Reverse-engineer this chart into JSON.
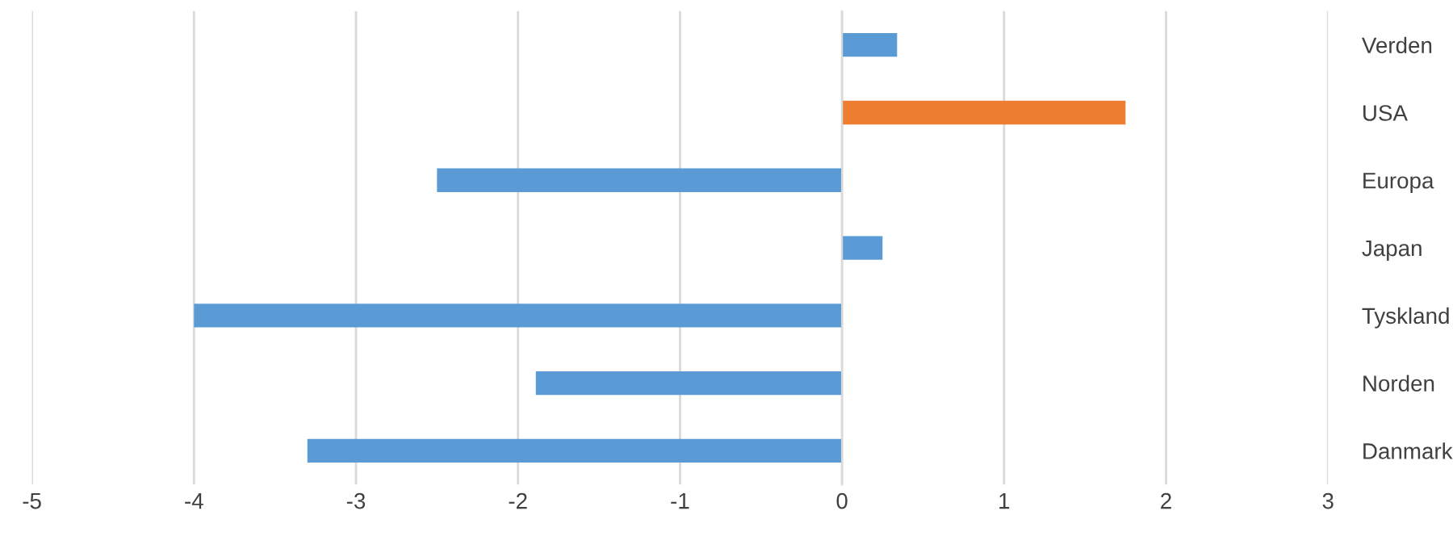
{
  "chart_data": {
    "type": "bar",
    "orientation": "horizontal",
    "categories": [
      "Verden",
      "USA",
      "Europa",
      "Japan",
      "Tyskland",
      "Norden",
      "Danmark"
    ],
    "values": [
      0.34,
      1.75,
      -2.5,
      0.25,
      -4.0,
      -1.89,
      -3.3
    ],
    "colors": [
      "#5b9bd5",
      "#ed7d31",
      "#5b9bd5",
      "#5b9bd5",
      "#5b9bd5",
      "#5b9bd5",
      "#5b9bd5"
    ],
    "xlim": [
      -5,
      3
    ],
    "xticks": [
      -5,
      -4,
      -3,
      -2,
      -1,
      0,
      1,
      2,
      3
    ],
    "grid": "x"
  }
}
